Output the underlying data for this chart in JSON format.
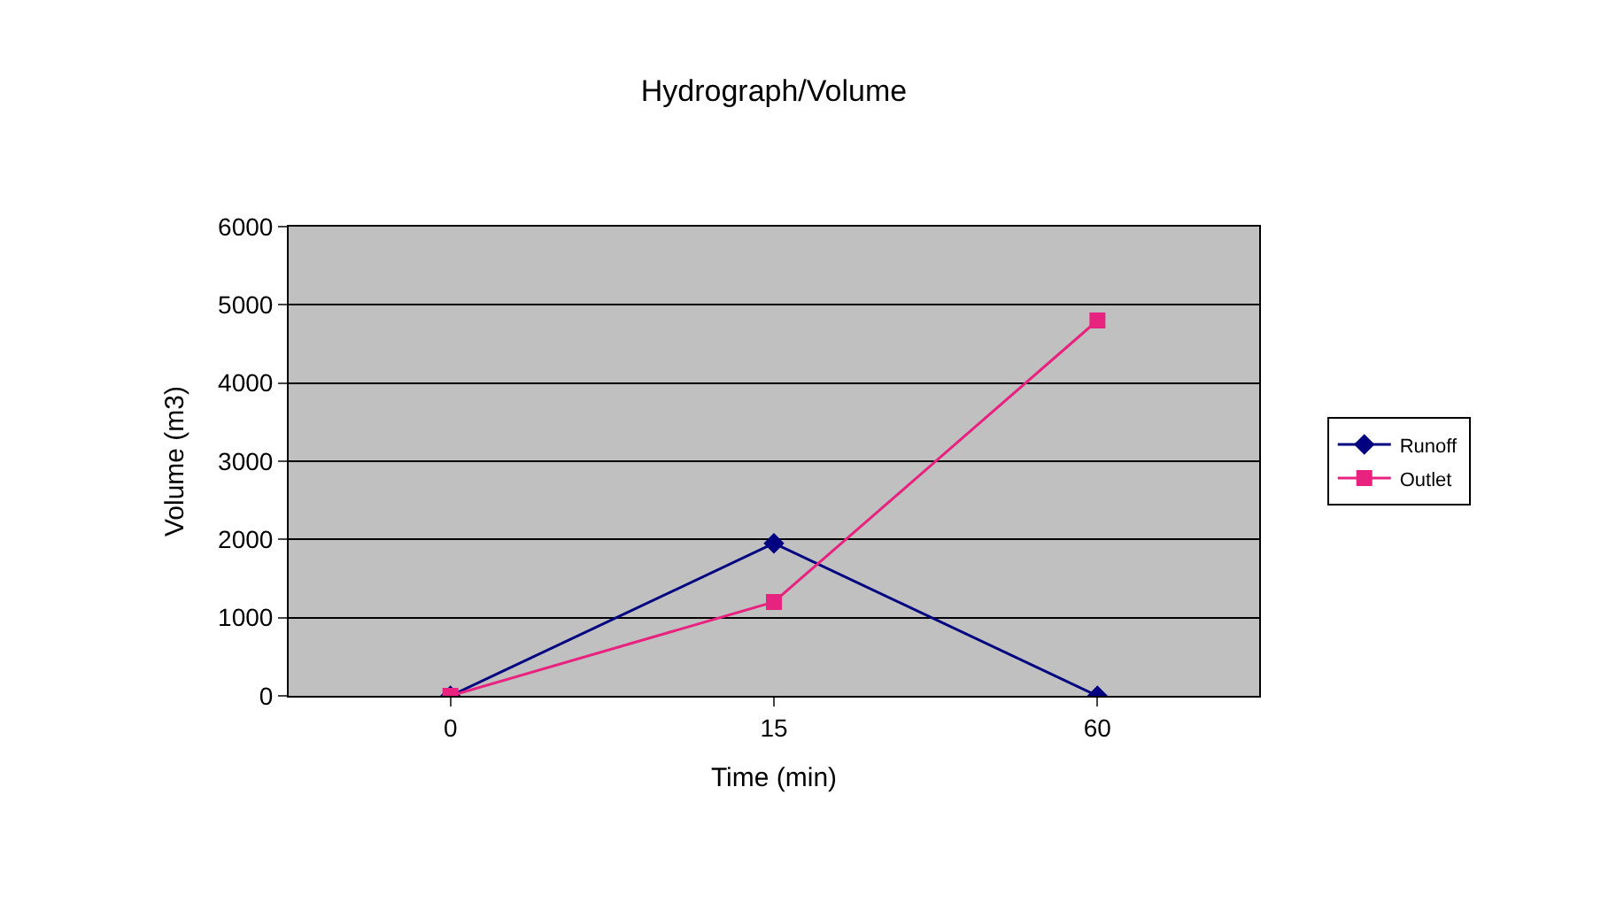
{
  "chart_data": {
    "type": "line",
    "title": "Hydrograph/Volume",
    "xlabel": "Time (min)",
    "ylabel": "Volume (m3)",
    "categories": [
      "0",
      "15",
      "60"
    ],
    "series": [
      {
        "name": "Runoff",
        "color": "#000080",
        "values": [
          0,
          1950,
          0
        ],
        "marker": "diamond"
      },
      {
        "name": "Outlet",
        "color": "#e8237f",
        "values": [
          0,
          1200,
          4800
        ],
        "marker": "square"
      }
    ],
    "ylim": [
      0,
      6000
    ],
    "yticks": [
      0,
      1000,
      2000,
      3000,
      4000,
      5000,
      6000
    ],
    "grid": "y",
    "legend": "right",
    "line_style": "solid"
  }
}
